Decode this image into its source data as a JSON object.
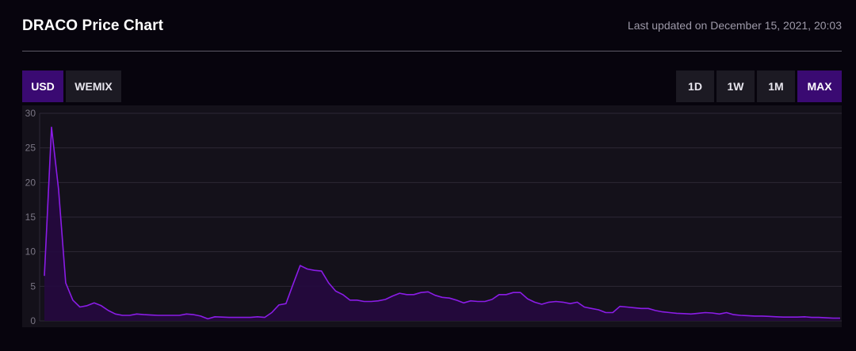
{
  "header": {
    "title": "DRACO Price Chart",
    "updated": "Last updated on December 15, 2021, 20:03"
  },
  "currency_tabs": [
    {
      "label": "USD",
      "active": true
    },
    {
      "label": "WEMIX",
      "active": false
    }
  ],
  "range_tabs": [
    {
      "label": "1D",
      "active": false
    },
    {
      "label": "1W",
      "active": false
    },
    {
      "label": "1M",
      "active": false
    },
    {
      "label": "MAX",
      "active": true
    }
  ],
  "colors": {
    "accent": "#3a0a72",
    "line": "#8a1ce6",
    "fill": "#25093f",
    "plot_bg": "#14111a",
    "grid": "#2c2835",
    "tick": "#7a7684"
  },
  "chart_data": {
    "type": "area",
    "title": "",
    "xlabel": "",
    "ylabel": "",
    "ylim": [
      0,
      30
    ],
    "yticks": [
      0,
      5,
      10,
      15,
      20,
      25,
      30
    ],
    "grid": true,
    "series": [
      {
        "values": [
          6.5,
          28,
          19,
          5.5,
          3,
          2,
          2.2,
          2.6,
          2.2,
          1.5,
          1,
          0.8,
          0.8,
          1,
          0.9,
          0.85,
          0.8,
          0.8,
          0.8,
          0.8,
          1,
          0.9,
          0.7,
          0.3,
          0.6,
          0.55,
          0.5,
          0.5,
          0.5,
          0.5,
          0.6,
          0.5,
          1.2,
          2.3,
          2.5,
          5.3,
          8,
          7.5,
          7.3,
          7.2,
          5.5,
          4.3,
          3.8,
          3,
          3,
          2.8,
          2.8,
          2.9,
          3.1,
          3.6,
          4,
          3.8,
          3.8,
          4.1,
          4.2,
          3.7,
          3.4,
          3.3,
          3,
          2.6,
          2.9,
          2.8,
          2.8,
          3.1,
          3.8,
          3.8,
          4.1,
          4.1,
          3.2,
          2.7,
          2.4,
          2.7,
          2.8,
          2.7,
          2.5,
          2.7,
          2,
          1.8,
          1.6,
          1.2,
          1.2,
          2.1,
          2,
          1.9,
          1.8,
          1.8,
          1.5,
          1.3,
          1.2,
          1.1,
          1.05,
          1,
          1.1,
          1.2,
          1.15,
          1,
          1.2,
          0.9,
          0.8,
          0.75,
          0.7,
          0.7,
          0.65,
          0.6,
          0.55,
          0.55,
          0.55,
          0.6,
          0.5,
          0.5,
          0.45,
          0.4,
          0.4
        ]
      }
    ]
  }
}
